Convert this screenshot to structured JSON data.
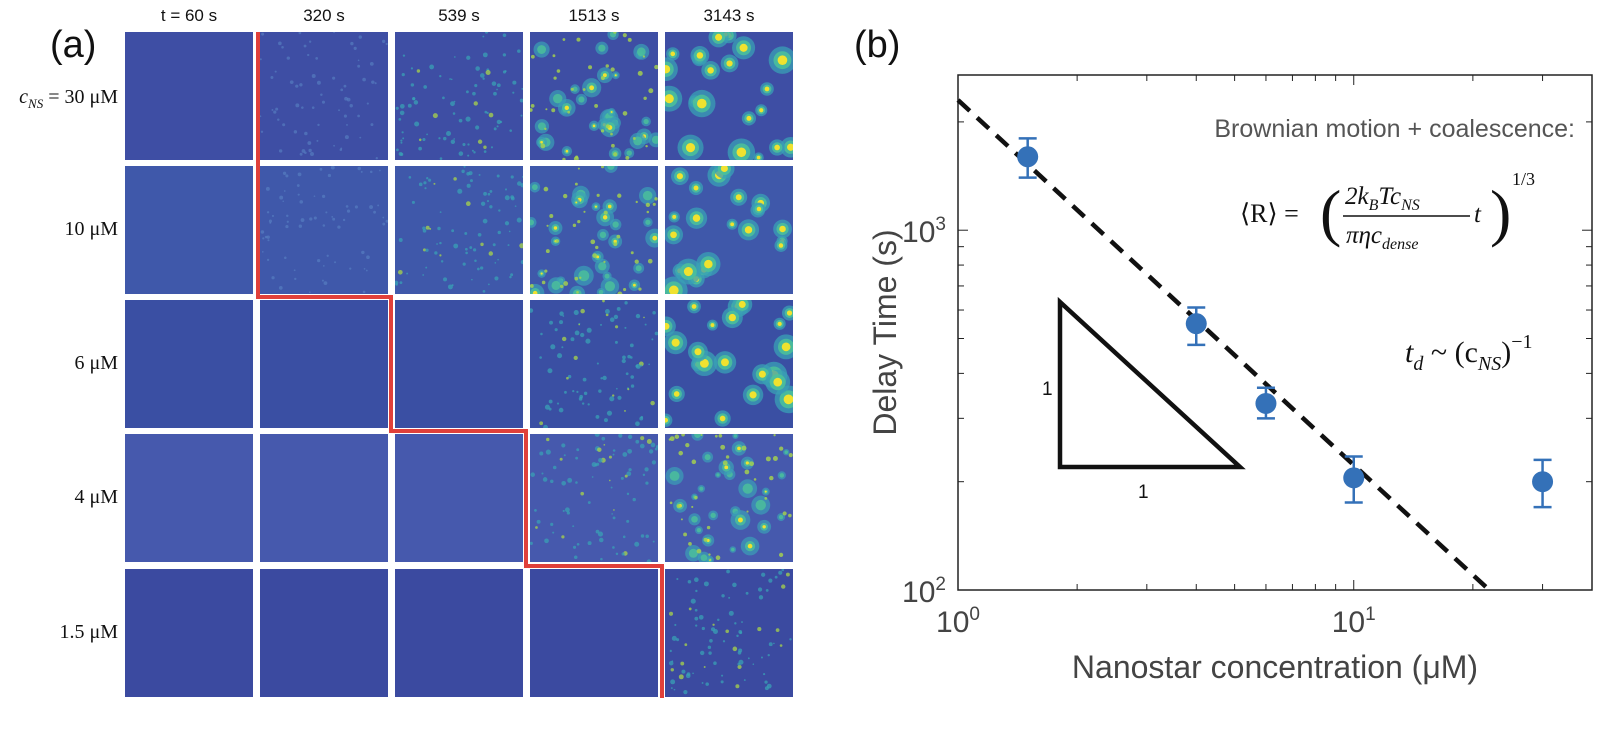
{
  "panel_a": {
    "label": "(a)",
    "time_labels": [
      "t = 60 s",
      "320 s",
      "539 s",
      "1513 s",
      "3143 s"
    ],
    "concentration_labels": [
      "c",
      "NS",
      " = 30 μM",
      "10 μM",
      "6 μM",
      "4 μM",
      "1.5 μM"
    ],
    "threshold_line_color": "#e0403a",
    "base_tile_color": "#3d4fa6"
  },
  "panel_b": {
    "label": "(b)",
    "annotation": "Brownian motion + coalescence:",
    "equation_lhs": "⟨R⟩ = ",
    "equation_num": "2k",
    "equation_num_sub": "B",
    "equation_num_mid": "Tc",
    "equation_num_sub2": "NS",
    "equation_den": "πηc",
    "equation_den_sub": "dense",
    "equation_t": "t",
    "equation_exp": "1/3",
    "scaling_lhs": "t",
    "scaling_lhs_sub": "d",
    "scaling_rhs": " ~ (c",
    "scaling_rhs_sub": "NS",
    "scaling_close": ")",
    "scaling_exp": "−1",
    "slope_vertical_label": "1",
    "slope_horizontal_label": "1"
  },
  "chart_data": {
    "type": "scatter",
    "xlabel": "Nanostar concentration (μM)",
    "ylabel": "Delay Time (s)",
    "xscale": "log",
    "yscale": "log",
    "xlim": [
      1,
      40
    ],
    "ylim": [
      100,
      2700
    ],
    "x_ticks": [
      {
        "value": 1,
        "base": "10",
        "exp": "0"
      },
      {
        "value": 10,
        "base": "10",
        "exp": "1"
      }
    ],
    "y_ticks": [
      {
        "value": 100,
        "base": "10",
        "exp": "2"
      },
      {
        "value": 1000,
        "base": "10",
        "exp": "3"
      }
    ],
    "series": [
      {
        "x": [
          1.5,
          4,
          6,
          10,
          30
        ],
        "y": [
          1600,
          550,
          330,
          205,
          200
        ],
        "yerr_low": [
          1400,
          480,
          300,
          175,
          170
        ],
        "yerr_high": [
          1800,
          610,
          365,
          235,
          230
        ],
        "color": "#3471b8"
      }
    ],
    "fit_line": {
      "slope": -1,
      "x": [
        1,
        22
      ],
      "y": [
        2300,
        100
      ],
      "style": "dashed"
    },
    "grid": false
  }
}
